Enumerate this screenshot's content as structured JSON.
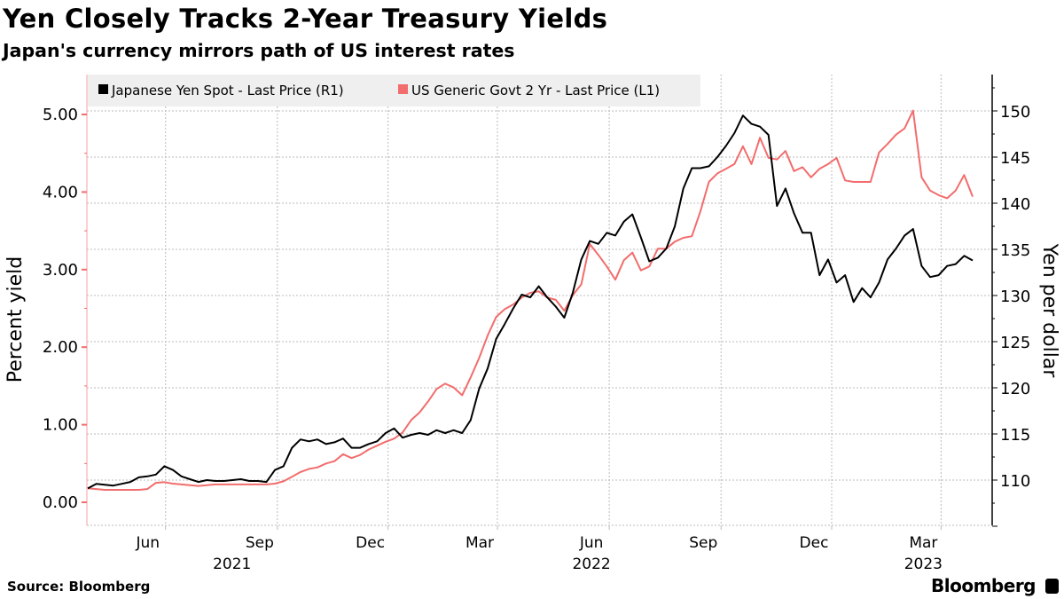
{
  "header": {
    "title": "Yen Closely Tracks 2-Year Treasury Yields",
    "subtitle": "Japan's currency mirrors path of US interest rates"
  },
  "footer": {
    "source": "Source: Bloomberg",
    "brand": "Bloomberg"
  },
  "chart_data": {
    "type": "line",
    "title": "Yen Closely Tracks 2-Year Treasury Yields",
    "subtitle": "Japan's currency mirrors path of US interest rates",
    "ylabel_left": "Percent yield",
    "ylabel_right": "Yen per dollar",
    "ylim_left": [
      -0.3,
      5.45
    ],
    "ylim_right": [
      105,
      154
    ],
    "left_ticks": [
      "0.00",
      "1.00",
      "2.00",
      "3.00",
      "4.00",
      "5.00"
    ],
    "right_ticks": [
      "110",
      "115",
      "120",
      "125",
      "130",
      "135",
      "140",
      "145",
      "150"
    ],
    "x_ticks": [
      {
        "date": "2021-06-01",
        "label": "Jun",
        "year": "2021"
      },
      {
        "date": "2021-09-01",
        "label": "Sep",
        "year": ""
      },
      {
        "date": "2021-12-01",
        "label": "Dec",
        "year": ""
      },
      {
        "date": "2022-03-01",
        "label": "Mar",
        "year": ""
      },
      {
        "date": "2022-06-01",
        "label": "Jun",
        "year": "2022"
      },
      {
        "date": "2022-09-01",
        "label": "Sep",
        "year": ""
      },
      {
        "date": "2022-12-01",
        "label": "Dec",
        "year": ""
      },
      {
        "date": "2023-03-01",
        "label": "Mar",
        "year": "2023"
      }
    ],
    "xlim": [
      "2021-03-29",
      "2023-03-27"
    ],
    "grid": true,
    "legend_placement": "top-left",
    "dates": [
      "2021-03-29",
      "2021-04-05",
      "2021-04-12",
      "2021-04-19",
      "2021-04-26",
      "2021-05-03",
      "2021-05-10",
      "2021-05-17",
      "2021-05-24",
      "2021-05-31",
      "2021-06-07",
      "2021-06-14",
      "2021-06-21",
      "2021-06-28",
      "2021-07-05",
      "2021-07-12",
      "2021-07-19",
      "2021-07-26",
      "2021-08-02",
      "2021-08-09",
      "2021-08-16",
      "2021-08-23",
      "2021-08-30",
      "2021-09-06",
      "2021-09-13",
      "2021-09-20",
      "2021-09-27",
      "2021-10-04",
      "2021-10-11",
      "2021-10-18",
      "2021-10-25",
      "2021-11-01",
      "2021-11-08",
      "2021-11-15",
      "2021-11-22",
      "2021-11-29",
      "2021-12-06",
      "2021-12-13",
      "2021-12-20",
      "2021-12-27",
      "2022-01-03",
      "2022-01-10",
      "2022-01-17",
      "2022-01-24",
      "2022-01-31",
      "2022-02-07",
      "2022-02-14",
      "2022-02-21",
      "2022-02-28",
      "2022-03-07",
      "2022-03-14",
      "2022-03-21",
      "2022-03-28",
      "2022-04-04",
      "2022-04-11",
      "2022-04-18",
      "2022-04-25",
      "2022-05-02",
      "2022-05-09",
      "2022-05-16",
      "2022-05-23",
      "2022-05-30",
      "2022-06-06",
      "2022-06-13",
      "2022-06-20",
      "2022-06-27",
      "2022-07-04",
      "2022-07-11",
      "2022-07-18",
      "2022-07-25",
      "2022-08-01",
      "2022-08-08",
      "2022-08-15",
      "2022-08-22",
      "2022-08-29",
      "2022-09-05",
      "2022-09-12",
      "2022-09-19",
      "2022-09-26",
      "2022-10-03",
      "2022-10-10",
      "2022-10-17",
      "2022-10-24",
      "2022-10-31",
      "2022-11-07",
      "2022-11-14",
      "2022-11-21",
      "2022-11-28",
      "2022-12-05",
      "2022-12-12",
      "2022-12-19",
      "2022-12-26",
      "2023-01-02",
      "2023-01-09",
      "2023-01-16",
      "2023-01-23",
      "2023-01-30",
      "2023-02-06",
      "2023-02-13",
      "2023-02-20",
      "2023-02-27",
      "2023-03-06",
      "2023-03-13",
      "2023-03-20",
      "2023-03-27"
    ],
    "series": [
      {
        "name": "Japanese Yen Spot - Last Price (R1)",
        "axis": "right",
        "color": "#000000",
        "values": [
          109.1,
          109.6,
          109.5,
          109.4,
          109.6,
          109.8,
          110.3,
          110.4,
          110.6,
          111.5,
          111.1,
          110.4,
          110.1,
          109.8,
          110.0,
          109.9,
          109.9,
          110.0,
          110.1,
          109.9,
          109.9,
          109.8,
          111.1,
          111.5,
          113.5,
          114.4,
          114.2,
          114.4,
          113.9,
          114.1,
          114.5,
          113.5,
          113.5,
          113.9,
          114.2,
          115.1,
          115.6,
          114.6,
          114.9,
          115.1,
          114.9,
          115.4,
          115.1,
          115.4,
          115.1,
          116.5,
          119.9,
          122.1,
          125.3,
          126.9,
          128.6,
          130.1,
          129.8,
          131.0,
          129.8,
          128.8,
          127.6,
          130.3,
          133.9,
          135.9,
          135.6,
          136.8,
          136.5,
          138.0,
          138.8,
          136.3,
          133.7,
          134.1,
          135.1,
          137.5,
          141.6,
          143.8,
          143.8,
          144.0,
          145.0,
          146.2,
          147.6,
          149.5,
          148.6,
          148.3,
          147.4,
          139.7,
          141.6,
          138.9,
          136.8,
          136.8,
          132.2,
          133.9,
          131.4,
          132.2,
          129.3,
          130.8,
          129.8,
          131.4,
          133.9,
          135.1,
          136.5,
          137.2,
          133.2,
          132.0,
          132.2,
          133.2,
          133.4,
          134.3,
          133.8
        ]
      },
      {
        "name": "US Generic Govt 2 Yr - Last Price (L1)",
        "axis": "left",
        "color": "#f26d6d",
        "values": [
          0.18,
          0.17,
          0.16,
          0.16,
          0.16,
          0.16,
          0.16,
          0.17,
          0.25,
          0.26,
          0.24,
          0.23,
          0.22,
          0.21,
          0.22,
          0.23,
          0.23,
          0.23,
          0.23,
          0.23,
          0.23,
          0.23,
          0.24,
          0.27,
          0.33,
          0.39,
          0.43,
          0.45,
          0.5,
          0.53,
          0.62,
          0.57,
          0.61,
          0.68,
          0.73,
          0.78,
          0.82,
          0.9,
          1.06,
          1.16,
          1.3,
          1.46,
          1.53,
          1.48,
          1.38,
          1.61,
          1.86,
          2.15,
          2.39,
          2.49,
          2.55,
          2.64,
          2.7,
          2.72,
          2.64,
          2.61,
          2.47,
          2.67,
          2.81,
          3.33,
          3.19,
          3.04,
          2.87,
          3.12,
          3.22,
          2.99,
          3.04,
          3.27,
          3.27,
          3.36,
          3.41,
          3.43,
          3.75,
          4.13,
          4.24,
          4.3,
          4.36,
          4.59,
          4.36,
          4.7,
          4.44,
          4.42,
          4.53,
          4.27,
          4.32,
          4.19,
          4.3,
          4.36,
          4.44,
          4.15,
          4.13,
          4.13,
          4.13,
          4.51,
          4.62,
          4.74,
          4.82,
          5.05,
          4.19,
          4.02,
          3.96,
          3.92,
          4.02,
          4.22,
          3.94
        ]
      }
    ]
  }
}
